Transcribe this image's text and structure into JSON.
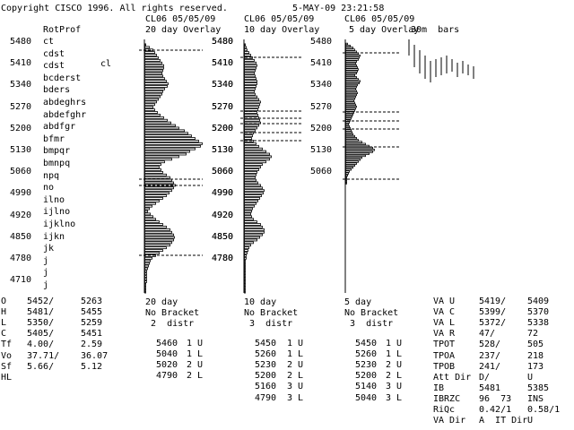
{
  "header": {
    "copyright": "Copyright CISCO 1996. All rights reserved.",
    "datetime": "5-MAY-09 23:21:58"
  },
  "left": {
    "rotprof_title": "RotProf",
    "marker": "cl",
    "prices": [
      "5480",
      "5410",
      "5340",
      "5270",
      "5200",
      "5130",
      "5060",
      "4990",
      "4920",
      "4850",
      "4780",
      "4710"
    ],
    "letters": [
      "ct",
      "cdst",
      "cdst",
      "bcderst",
      "bders",
      "abdeghrs",
      "abdefghr",
      "abdfgr",
      "bfmr",
      "bmpqr",
      "bmnpq",
      "npq",
      "no",
      "ilno",
      "ijlno",
      "ijklno",
      "ijkn",
      "jk",
      "j",
      "j",
      "j"
    ]
  },
  "panels": [
    {
      "title": "CL06 05/05/09",
      "subtitle": "20 day Overlay",
      "prices": [
        "5480",
        "5410",
        "5340",
        "5270",
        "5200",
        "5130",
        "5060",
        "4990",
        "4920",
        "4850",
        "4780"
      ],
      "bars": [
        0,
        1,
        5,
        9,
        11,
        13,
        15,
        17,
        19,
        21,
        21,
        20,
        19,
        20,
        22,
        24,
        26,
        25,
        22,
        20,
        19,
        17,
        15,
        13,
        11,
        9,
        11,
        14,
        17,
        21,
        25,
        29,
        34,
        38,
        44,
        48,
        52,
        56,
        60,
        64,
        62,
        56,
        50,
        46,
        38,
        30,
        22,
        18,
        16,
        18,
        20,
        24,
        28,
        30,
        32,
        34,
        32,
        30,
        27,
        24,
        20,
        16,
        12,
        8,
        5,
        3,
        6,
        9,
        12,
        16,
        20,
        24,
        28,
        30,
        32,
        33,
        32,
        30,
        28,
        24,
        20,
        16,
        12,
        8,
        6,
        5,
        4,
        3,
        2,
        2,
        2,
        2,
        2,
        1,
        1,
        1,
        1
      ],
      "dashed_y": [
        56,
        200,
        207,
        285
      ],
      "footer": [
        "20 day",
        "No Bracket",
        " 2  distr"
      ],
      "table": [
        [
          "5460",
          "1 U"
        ],
        [
          "5040",
          "1 L"
        ],
        [
          "5020",
          "2 U"
        ],
        [
          "4790",
          "2 L"
        ]
      ]
    },
    {
      "title": "CL06 05/05/09",
      "subtitle": "10 day Overlay",
      "prices": [
        "5480",
        "5410",
        "5340",
        "5270",
        "5200",
        "5130",
        "5060",
        "4990",
        "4920",
        "4850",
        "4780"
      ],
      "bars": [
        0,
        1,
        2,
        3,
        5,
        7,
        9,
        11,
        13,
        14,
        13,
        12,
        11,
        12,
        13,
        14,
        14,
        13,
        12,
        11,
        12,
        14,
        16,
        18,
        17,
        16,
        15,
        14,
        15,
        16,
        17,
        18,
        16,
        14,
        12,
        10,
        9,
        8,
        10,
        13,
        16,
        20,
        24,
        28,
        30,
        28,
        24,
        20,
        18,
        16,
        14,
        13,
        12,
        13,
        15,
        18,
        20,
        22,
        21,
        19,
        17,
        15,
        13,
        11,
        9,
        8,
        7,
        8,
        10,
        14,
        18,
        20,
        22,
        22,
        20,
        17,
        14,
        10,
        7,
        5,
        4,
        3,
        2,
        2,
        1,
        1,
        1,
        1,
        1,
        1,
        1,
        1,
        1,
        1,
        1,
        1,
        1
      ],
      "dashed_y": [
        64,
        124,
        132,
        138,
        148,
        157
      ],
      "footer": [
        "10 day",
        "No Bracket",
        " 3  distr"
      ],
      "table": [
        [
          "5450",
          "1 U"
        ],
        [
          "5260",
          "1 L"
        ],
        [
          "5230",
          "2 U"
        ],
        [
          "5200",
          "2 L"
        ],
        [
          "5160",
          "3 U"
        ],
        [
          "4790",
          "3 L"
        ]
      ]
    },
    {
      "title": "CL06 05/05/09",
      "subtitle": "5 day Overlay",
      "prices": [
        "5480",
        "5410",
        "5340",
        "5270",
        "5200",
        "5130",
        "5060"
      ],
      "bars": [
        0,
        2,
        5,
        8,
        10,
        12,
        14,
        16,
        15,
        14,
        12,
        11,
        12,
        13,
        14,
        13,
        12,
        10,
        12,
        14,
        16,
        15,
        13,
        12,
        11,
        12,
        13,
        12,
        11,
        10,
        9,
        10,
        11,
        12,
        11,
        10,
        9,
        8,
        7,
        6,
        5,
        4,
        3,
        4,
        5,
        6,
        7,
        8,
        10,
        12,
        14,
        18,
        22,
        26,
        30,
        32,
        30,
        26,
        22,
        18,
        16,
        14,
        12,
        10,
        8,
        6,
        4,
        3,
        2,
        1,
        1,
        1,
        1
      ],
      "dashed_y": [
        59,
        125,
        135,
        144,
        164,
        200
      ],
      "footer": [
        "5 day",
        "No Bracket",
        " 3  distr"
      ],
      "table": [
        [
          "5450",
          "1 U"
        ],
        [
          "5260",
          "1 L"
        ],
        [
          "5230",
          "2 U"
        ],
        [
          "5200",
          "2 L"
        ],
        [
          "5140",
          "3 U"
        ],
        [
          "5040",
          "3 L"
        ]
      ],
      "extra_title": "30m  bars",
      "mini_bars": [
        [
          44,
          62
        ],
        [
          50,
          75
        ],
        [
          56,
          82
        ],
        [
          62,
          88
        ],
        [
          68,
          92
        ],
        [
          66,
          86
        ],
        [
          64,
          84
        ],
        [
          62,
          82
        ],
        [
          66,
          80
        ],
        [
          70,
          86
        ],
        [
          68,
          82
        ],
        [
          72,
          84
        ],
        [
          74,
          88
        ]
      ]
    }
  ],
  "ohlc": [
    [
      "O",
      "5452/",
      "5263"
    ],
    [
      "H",
      "5481/",
      "5455"
    ],
    [
      "L",
      "5350/",
      "5259"
    ],
    [
      "C",
      "5405/",
      "5451"
    ],
    [
      "Tf",
      "4.00/",
      "2.59"
    ],
    [
      "Vo",
      "37.71/",
      "36.07"
    ],
    [
      "Sf",
      "5.66/",
      "5.12"
    ],
    [
      "HL",
      "",
      ""
    ]
  ],
  "right_stats": [
    [
      "VA U",
      "5419/",
      "5409"
    ],
    [
      "VA C",
      "5399/",
      "5370"
    ],
    [
      "VA L",
      "5372/",
      "5338"
    ],
    [
      "VA R",
      "47/",
      "72"
    ],
    [
      "TPOT",
      "528/",
      "505"
    ],
    [
      "TPOA",
      "237/",
      "218"
    ],
    [
      "TPOB",
      "241/",
      "173"
    ],
    [
      "Att Dir",
      "D/",
      "U"
    ],
    [
      "IB",
      "5481",
      "5385"
    ],
    [
      "IBRZC",
      "96  73",
      "INS"
    ],
    [
      "RiQc",
      "0.42/1",
      "0.58/1"
    ],
    [
      "VA Dir",
      "A  IT Dir",
      "U"
    ]
  ]
}
